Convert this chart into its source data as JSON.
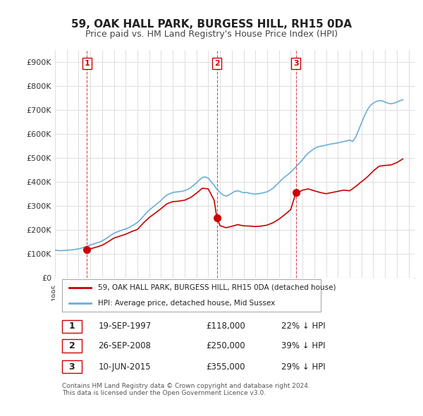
{
  "title": "59, OAK HALL PARK, BURGESS HILL, RH15 0DA",
  "subtitle": "Price paid vs. HM Land Registry's House Price Index (HPI)",
  "hpi_color": "#6baed6",
  "price_color": "#cc0000",
  "background_color": "#ffffff",
  "grid_color": "#dddddd",
  "ylim": [
    0,
    950000
  ],
  "yticks": [
    0,
    100000,
    200000,
    300000,
    400000,
    500000,
    600000,
    700000,
    800000,
    900000
  ],
  "ytick_labels": [
    "£0",
    "£100K",
    "£200K",
    "£300K",
    "£400K",
    "£500K",
    "£600K",
    "£700K",
    "£800K",
    "£900K"
  ],
  "xlim_start": 1995.0,
  "xlim_end": 2025.5,
  "purchases": [
    {
      "year": 1997.72,
      "price": 118000,
      "label": "1"
    },
    {
      "year": 2008.73,
      "price": 250000,
      "label": "2"
    },
    {
      "year": 2015.44,
      "price": 355000,
      "label": "3"
    }
  ],
  "legend_entries": [
    {
      "label": "59, OAK HALL PARK, BURGESS HILL, RH15 0DA (detached house)",
      "color": "#cc0000"
    },
    {
      "label": "HPI: Average price, detached house, Mid Sussex",
      "color": "#6baed6"
    }
  ],
  "table_rows": [
    {
      "num": "1",
      "date": "19-SEP-1997",
      "price": "£118,000",
      "hpi": "22% ↓ HPI"
    },
    {
      "num": "2",
      "date": "26-SEP-2008",
      "price": "£250,000",
      "hpi": "39% ↓ HPI"
    },
    {
      "num": "3",
      "date": "10-JUN-2015",
      "price": "£355,000",
      "hpi": "29% ↓ HPI"
    }
  ],
  "footer": "Contains HM Land Registry data © Crown copyright and database right 2024.\nThis data is licensed under the Open Government Licence v3.0.",
  "hpi_data": {
    "years": [
      1995.0,
      1995.25,
      1995.5,
      1995.75,
      1996.0,
      1996.25,
      1996.5,
      1996.75,
      1997.0,
      1997.25,
      1997.5,
      1997.75,
      1998.0,
      1998.25,
      1998.5,
      1998.75,
      1999.0,
      1999.25,
      1999.5,
      1999.75,
      2000.0,
      2000.25,
      2000.5,
      2000.75,
      2001.0,
      2001.25,
      2001.5,
      2001.75,
      2002.0,
      2002.25,
      2002.5,
      2002.75,
      2003.0,
      2003.25,
      2003.5,
      2003.75,
      2004.0,
      2004.25,
      2004.5,
      2004.75,
      2005.0,
      2005.25,
      2005.5,
      2005.75,
      2006.0,
      2006.25,
      2006.5,
      2006.75,
      2007.0,
      2007.25,
      2007.5,
      2007.75,
      2008.0,
      2008.25,
      2008.5,
      2008.75,
      2009.0,
      2009.25,
      2009.5,
      2009.75,
      2010.0,
      2010.25,
      2010.5,
      2010.75,
      2011.0,
      2011.25,
      2011.5,
      2011.75,
      2012.0,
      2012.25,
      2012.5,
      2012.75,
      2013.0,
      2013.25,
      2013.5,
      2013.75,
      2014.0,
      2014.25,
      2014.5,
      2014.75,
      2015.0,
      2015.25,
      2015.5,
      2015.75,
      2016.0,
      2016.25,
      2016.5,
      2016.75,
      2017.0,
      2017.25,
      2017.5,
      2017.75,
      2018.0,
      2018.25,
      2018.5,
      2018.75,
      2019.0,
      2019.25,
      2019.5,
      2019.75,
      2020.0,
      2020.25,
      2020.5,
      2020.75,
      2021.0,
      2021.25,
      2021.5,
      2021.75,
      2022.0,
      2022.25,
      2022.5,
      2022.75,
      2023.0,
      2023.25,
      2023.5,
      2023.75,
      2024.0,
      2024.25,
      2024.5
    ],
    "values": [
      115000,
      113000,
      112000,
      113000,
      114000,
      115000,
      116000,
      118000,
      120000,
      123000,
      127000,
      131000,
      136000,
      140000,
      144000,
      148000,
      153000,
      160000,
      168000,
      177000,
      185000,
      190000,
      195000,
      199000,
      203000,
      208000,
      215000,
      222000,
      230000,
      242000,
      256000,
      270000,
      282000,
      292000,
      302000,
      312000,
      322000,
      335000,
      345000,
      350000,
      355000,
      357000,
      358000,
      360000,
      363000,
      368000,
      375000,
      385000,
      395000,
      408000,
      418000,
      420000,
      415000,
      400000,
      385000,
      368000,
      355000,
      345000,
      340000,
      345000,
      352000,
      360000,
      362000,
      358000,
      354000,
      355000,
      352000,
      350000,
      348000,
      350000,
      352000,
      355000,
      358000,
      365000,
      373000,
      385000,
      397000,
      410000,
      420000,
      430000,
      440000,
      452000,
      465000,
      478000,
      492000,
      508000,
      520000,
      530000,
      538000,
      545000,
      548000,
      550000,
      553000,
      556000,
      558000,
      560000,
      562000,
      565000,
      568000,
      570000,
      574000,
      568000,
      585000,
      615000,
      645000,
      675000,
      700000,
      718000,
      728000,
      735000,
      738000,
      738000,
      732000,
      728000,
      725000,
      728000,
      732000,
      738000,
      742000
    ]
  },
  "price_path_data": {
    "years": [
      1997.72,
      1998.0,
      1998.5,
      1999.0,
      1999.5,
      2000.0,
      2000.5,
      2001.0,
      2001.5,
      2002.0,
      2002.5,
      2003.0,
      2003.5,
      2004.0,
      2004.5,
      2005.0,
      2005.5,
      2006.0,
      2006.5,
      2007.0,
      2007.5,
      2008.0,
      2008.5,
      2008.73,
      2009.0,
      2009.5,
      2010.0,
      2010.5,
      2011.0,
      2011.5,
      2012.0,
      2012.5,
      2013.0,
      2013.5,
      2014.0,
      2014.5,
      2015.0,
      2015.44,
      2015.75,
      2016.0,
      2016.5,
      2017.0,
      2017.5,
      2018.0,
      2018.5,
      2019.0,
      2019.5,
      2020.0,
      2020.5,
      2021.0,
      2021.5,
      2022.0,
      2022.5,
      2023.0,
      2023.5,
      2024.0,
      2024.5
    ],
    "values": [
      118000,
      120000,
      127000,
      135000,
      149000,
      165000,
      173000,
      181000,
      192000,
      201000,
      228000,
      251000,
      269000,
      288000,
      308000,
      317000,
      319000,
      323000,
      334000,
      352000,
      373000,
      370000,
      323000,
      250000,
      217000,
      208000,
      214000,
      221000,
      216000,
      215000,
      213000,
      215000,
      219000,
      229000,
      244000,
      263000,
      284000,
      355000,
      358000,
      365000,
      370000,
      362000,
      355000,
      350000,
      355000,
      360000,
      365000,
      362000,
      380000,
      400000,
      420000,
      445000,
      465000,
      468000,
      470000,
      480000,
      495000
    ]
  }
}
